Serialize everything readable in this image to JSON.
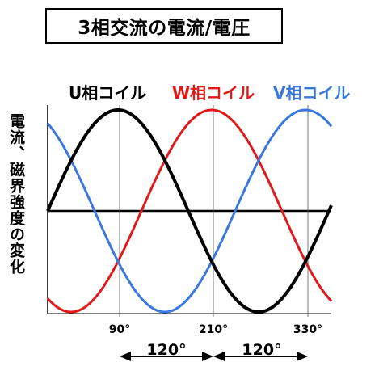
{
  "title": "3相交流の電流/電圧",
  "y_axis_label": "電流、磁界強度の変化",
  "legend": [
    {
      "label": "U相コイル",
      "color": "#000000"
    },
    {
      "label": "W相コイル",
      "color": "#e01a1a"
    },
    {
      "label": "V相コイル",
      "color": "#3a78e0"
    }
  ],
  "x_ticks": [
    "90°",
    "210°",
    "330°"
  ],
  "phase_spans": [
    "120°",
    "120°"
  ],
  "waves": {
    "U": {
      "phase_deg": 0,
      "color": "#000000"
    },
    "W": {
      "phase_deg": 120,
      "color": "#e01a1a"
    },
    "V": {
      "phase_deg": 240,
      "color": "#3a78e0"
    }
  }
}
